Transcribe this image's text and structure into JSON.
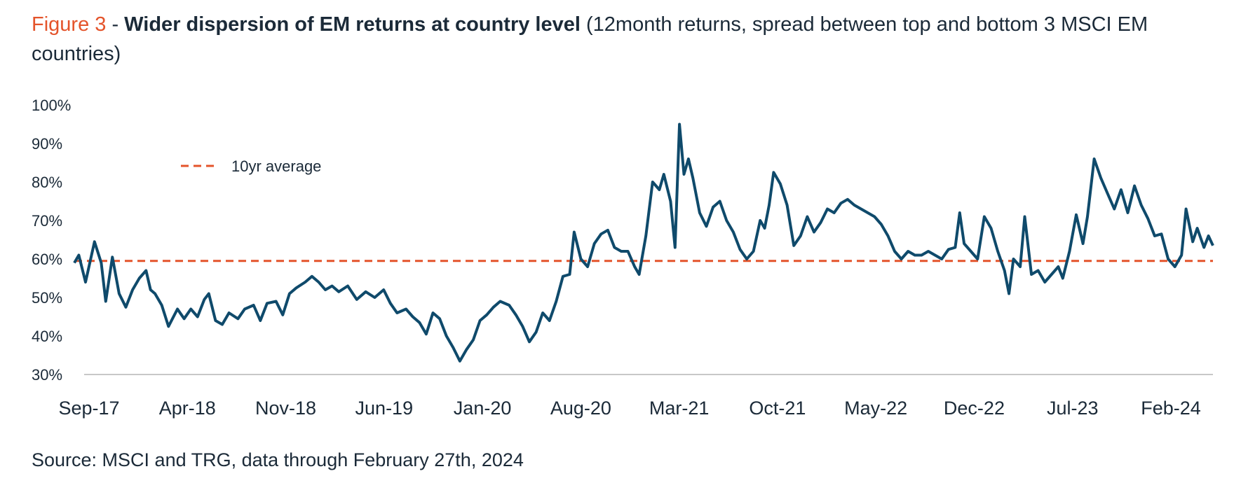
{
  "figure_label": "Figure 3",
  "separator": " - ",
  "title": "Wider dispersion of EM returns at country level",
  "subtitle": "(12month returns, spread between top and bottom 3 MSCI EM countries)",
  "source": "Source: MSCI and TRG, data through February 27th, 2024",
  "colors": {
    "accent": "#e4542b",
    "line": "#0f4a6b",
    "text": "#1b2a38",
    "axis": "#c8c8c8"
  },
  "chart_data": {
    "type": "line",
    "ylim": [
      30,
      100
    ],
    "yticks": [
      "30%",
      "40%",
      "50%",
      "60%",
      "70%",
      "80%",
      "90%",
      "100%"
    ],
    "xticks": [
      "Sep-17",
      "Apr-18",
      "Nov-18",
      "Jun-19",
      "Jan-20",
      "Aug-20",
      "Mar-21",
      "Oct-21",
      "May-22",
      "Dec-22",
      "Jul-23",
      "Feb-24"
    ],
    "legend": {
      "label": "10yr average",
      "position": "top-left"
    },
    "reference_line": {
      "label": "10yr average",
      "value": 59.5
    },
    "series": [
      {
        "values": [
          [
            0,
            59
          ],
          [
            0.2,
            61
          ],
          [
            0.5,
            54
          ],
          [
            0.9,
            64.5
          ],
          [
            1.2,
            59
          ],
          [
            1.4,
            49
          ],
          [
            1.7,
            60.5
          ],
          [
            2.0,
            51
          ],
          [
            2.3,
            47.5
          ],
          [
            2.6,
            52
          ],
          [
            2.9,
            55
          ],
          [
            3.2,
            57
          ],
          [
            3.4,
            52
          ],
          [
            3.6,
            51
          ],
          [
            3.9,
            48
          ],
          [
            4.2,
            42.5
          ],
          [
            4.6,
            47
          ],
          [
            4.9,
            44.5
          ],
          [
            5.2,
            47
          ],
          [
            5.5,
            45
          ],
          [
            5.8,
            49.5
          ],
          [
            6.0,
            51
          ],
          [
            6.3,
            44
          ],
          [
            6.6,
            43
          ],
          [
            6.9,
            46
          ],
          [
            7.3,
            44.5
          ],
          [
            7.6,
            47
          ],
          [
            8.0,
            48
          ],
          [
            8.3,
            44
          ],
          [
            8.6,
            48.5
          ],
          [
            9.0,
            49
          ],
          [
            9.3,
            45.5
          ],
          [
            9.6,
            51
          ],
          [
            9.9,
            52.5
          ],
          [
            10.3,
            54
          ],
          [
            10.6,
            55.5
          ],
          [
            10.9,
            54
          ],
          [
            11.2,
            52
          ],
          [
            11.5,
            53
          ],
          [
            11.8,
            51.5
          ],
          [
            12.2,
            53
          ],
          [
            12.6,
            49.5
          ],
          [
            13.0,
            51.5
          ],
          [
            13.4,
            50
          ],
          [
            13.8,
            52
          ],
          [
            14.1,
            48.5
          ],
          [
            14.4,
            46
          ],
          [
            14.8,
            47
          ],
          [
            15.1,
            45
          ],
          [
            15.4,
            43.5
          ],
          [
            15.7,
            40.5
          ],
          [
            16.0,
            46
          ],
          [
            16.3,
            44.5
          ],
          [
            16.6,
            40
          ],
          [
            16.9,
            37
          ],
          [
            17.2,
            33.5
          ],
          [
            17.5,
            36.5
          ],
          [
            17.8,
            39
          ],
          [
            18.1,
            44
          ],
          [
            18.4,
            45.5
          ],
          [
            18.7,
            47.5
          ],
          [
            19.0,
            49
          ],
          [
            19.4,
            48
          ],
          [
            19.7,
            45.5
          ],
          [
            20.0,
            42.5
          ],
          [
            20.3,
            38.5
          ],
          [
            20.6,
            41
          ],
          [
            20.9,
            46
          ],
          [
            21.2,
            44
          ],
          [
            21.5,
            49
          ],
          [
            21.8,
            55.5
          ],
          [
            22.1,
            56
          ],
          [
            22.3,
            67
          ],
          [
            22.6,
            60
          ],
          [
            22.9,
            58
          ],
          [
            23.2,
            64
          ],
          [
            23.5,
            66.5
          ],
          [
            23.8,
            67.5
          ],
          [
            24.1,
            63
          ],
          [
            24.4,
            62
          ],
          [
            24.7,
            62
          ],
          [
            25.0,
            58
          ],
          [
            25.2,
            56
          ],
          [
            25.5,
            66
          ],
          [
            25.8,
            80
          ],
          [
            26.1,
            78
          ],
          [
            26.3,
            82
          ],
          [
            26.6,
            75
          ],
          [
            26.8,
            63
          ],
          [
            27.0,
            95
          ],
          [
            27.2,
            82
          ],
          [
            27.4,
            86
          ],
          [
            27.6,
            81
          ],
          [
            27.9,
            72
          ],
          [
            28.2,
            68.5
          ],
          [
            28.5,
            73.5
          ],
          [
            28.8,
            75
          ],
          [
            29.1,
            70
          ],
          [
            29.4,
            67
          ],
          [
            29.7,
            62.5
          ],
          [
            30.0,
            60
          ],
          [
            30.3,
            62
          ],
          [
            30.6,
            70
          ],
          [
            30.8,
            68
          ],
          [
            31.0,
            74
          ],
          [
            31.2,
            82.5
          ],
          [
            31.5,
            79.5
          ],
          [
            31.8,
            74
          ],
          [
            32.1,
            63.5
          ],
          [
            32.4,
            66
          ],
          [
            32.7,
            71
          ],
          [
            33.0,
            67
          ],
          [
            33.3,
            69.5
          ],
          [
            33.6,
            73
          ],
          [
            33.9,
            72
          ],
          [
            34.2,
            74.5
          ],
          [
            34.5,
            75.5
          ],
          [
            34.8,
            74
          ],
          [
            35.1,
            73
          ],
          [
            35.4,
            72
          ],
          [
            35.7,
            71
          ],
          [
            36.0,
            69
          ],
          [
            36.3,
            66
          ],
          [
            36.6,
            62
          ],
          [
            36.9,
            60
          ],
          [
            37.2,
            62
          ],
          [
            37.5,
            61
          ],
          [
            37.8,
            61
          ],
          [
            38.1,
            62
          ],
          [
            38.4,
            61
          ],
          [
            38.7,
            60
          ],
          [
            39.0,
            62.5
          ],
          [
            39.3,
            63
          ],
          [
            39.5,
            72
          ],
          [
            39.7,
            64
          ],
          [
            40.0,
            62
          ],
          [
            40.3,
            60
          ],
          [
            40.6,
            71
          ],
          [
            40.9,
            68
          ],
          [
            41.2,
            62
          ],
          [
            41.5,
            57
          ],
          [
            41.7,
            51
          ],
          [
            41.9,
            60
          ],
          [
            42.2,
            58
          ],
          [
            42.4,
            71
          ],
          [
            42.7,
            56
          ],
          [
            43.0,
            57
          ],
          [
            43.3,
            54
          ],
          [
            43.6,
            56
          ],
          [
            43.9,
            58
          ],
          [
            44.1,
            55
          ],
          [
            44.4,
            62
          ],
          [
            44.7,
            71.5
          ],
          [
            45.0,
            64
          ],
          [
            45.2,
            71
          ],
          [
            45.5,
            86
          ],
          [
            45.8,
            81
          ],
          [
            46.1,
            77
          ],
          [
            46.4,
            73
          ],
          [
            46.7,
            78
          ],
          [
            47.0,
            72
          ],
          [
            47.3,
            79
          ],
          [
            47.6,
            74
          ],
          [
            47.9,
            70.5
          ],
          [
            48.2,
            66
          ],
          [
            48.5,
            66.5
          ],
          [
            48.8,
            60
          ],
          [
            49.1,
            58
          ],
          [
            49.4,
            61
          ],
          [
            49.6,
            73
          ],
          [
            49.9,
            64.5
          ],
          [
            50.1,
            68
          ],
          [
            50.4,
            63
          ],
          [
            50.6,
            66
          ],
          [
            50.8,
            63.5
          ]
        ]
      }
    ]
  }
}
